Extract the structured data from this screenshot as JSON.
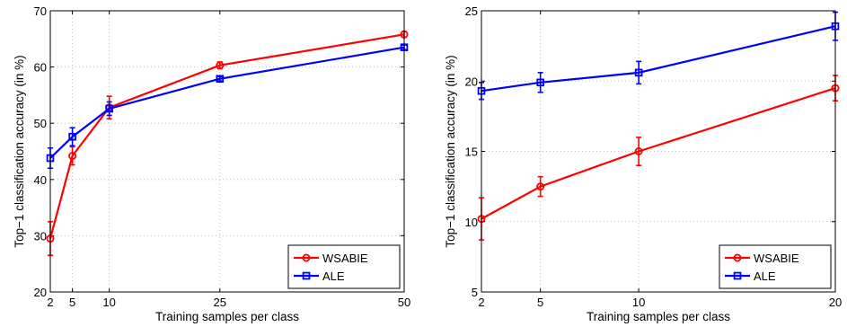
{
  "chart_data": [
    {
      "type": "line",
      "xlabel": "Training samples per class",
      "ylabel": "Top−1 classification accuracy (in %)",
      "xlim": [
        2,
        50
      ],
      "ylim": [
        20,
        70
      ],
      "xticks": [
        2,
        5,
        10,
        25,
        50
      ],
      "yticks": [
        20,
        30,
        40,
        50,
        60,
        70
      ],
      "grid": true,
      "legend_position": "bottom-right",
      "x": [
        2,
        5,
        10,
        25,
        50
      ],
      "series": [
        {
          "name": "WSABIE",
          "color": "#ff0000",
          "marker": "circle",
          "values": [
            29.5,
            44.2,
            52.8,
            60.3,
            65.8
          ],
          "errors": [
            3.0,
            1.6,
            2.0,
            0.6,
            0.5
          ]
        },
        {
          "name": "ALE",
          "color": "#0000ff",
          "marker": "square",
          "values": [
            43.8,
            47.6,
            52.6,
            57.9,
            63.5
          ],
          "errors": [
            1.8,
            1.6,
            1.2,
            0.4,
            0.4
          ]
        }
      ]
    },
    {
      "type": "line",
      "xlabel": "Training samples per class",
      "ylabel": "Top−1 classification accuracy (in %)",
      "xlim": [
        2,
        20
      ],
      "ylim": [
        5,
        25
      ],
      "xticks": [
        2,
        5,
        10,
        20
      ],
      "yticks": [
        5,
        10,
        15,
        20,
        25
      ],
      "grid": true,
      "legend_position": "bottom-right",
      "x": [
        2,
        5,
        10,
        20
      ],
      "series": [
        {
          "name": "WSABIE",
          "color": "#ff0000",
          "marker": "circle",
          "values": [
            10.2,
            12.5,
            15.0,
            19.5
          ],
          "errors": [
            1.5,
            0.7,
            1.0,
            0.9
          ]
        },
        {
          "name": "ALE",
          "color": "#0000ff",
          "marker": "square",
          "values": [
            19.3,
            19.9,
            20.6,
            23.9
          ],
          "errors": [
            0.6,
            0.7,
            0.8,
            1.0
          ]
        }
      ]
    }
  ]
}
